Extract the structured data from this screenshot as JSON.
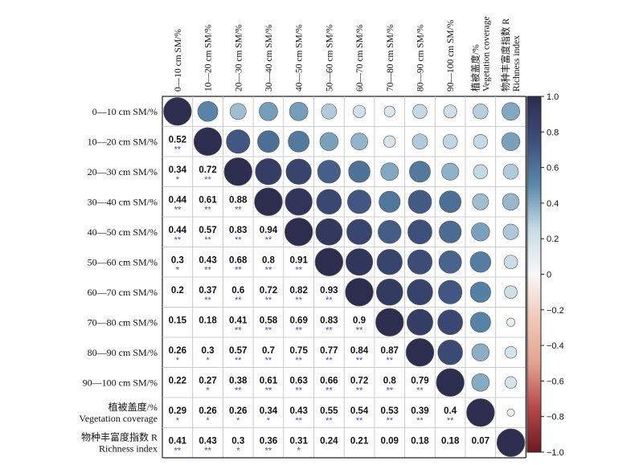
{
  "chart_data": {
    "type": "heatmap",
    "variables": [
      {
        "row_label": [
          "0—10 cm SM/%"
        ],
        "col_label": [
          "0—10 cm SM/%"
        ]
      },
      {
        "row_label": [
          "10—20 cm SM/%"
        ],
        "col_label": [
          "10—20 cm SM/%"
        ]
      },
      {
        "row_label": [
          "20—30 cm SM/%"
        ],
        "col_label": [
          "20—30 cm SM/%"
        ]
      },
      {
        "row_label": [
          "30—40 cm SM/%"
        ],
        "col_label": [
          "30—40 cm SM/%"
        ]
      },
      {
        "row_label": [
          "40—50 cm SM/%"
        ],
        "col_label": [
          "40—50 cm SM/%"
        ]
      },
      {
        "row_label": [
          "50—60 cm SM/%"
        ],
        "col_label": [
          "50—60 cm SM/%"
        ]
      },
      {
        "row_label": [
          "60—70 cm SM/%"
        ],
        "col_label": [
          "60—70 cm SM/%"
        ]
      },
      {
        "row_label": [
          "70—80 cm SM/%"
        ],
        "col_label": [
          "70—80 cm SM/%"
        ]
      },
      {
        "row_label": [
          "80—90 cm SM/%"
        ],
        "col_label": [
          "80—90 cm SM/%"
        ]
      },
      {
        "row_label": [
          "90—100 cm SM/%"
        ],
        "col_label": [
          "90—100 cm SM/%"
        ]
      },
      {
        "row_label": [
          "植被盖度/%",
          "Vegetation coverage"
        ],
        "col_label": [
          "植被盖度/%",
          "Vegetation coverage"
        ]
      },
      {
        "row_label": [
          "物种丰富度指数 R",
          "Richness index"
        ],
        "col_label": [
          "物种丰富度指数 R",
          "Richness index"
        ]
      }
    ],
    "correlation_matrix": [
      [
        1,
        0.52,
        0.34,
        0.44,
        0.44,
        0.3,
        0.2,
        0.15,
        0.26,
        0.22,
        0.29,
        0.41
      ],
      [
        0.52,
        1,
        0.72,
        0.61,
        0.57,
        0.43,
        0.37,
        0.18,
        0.3,
        0.27,
        0.26,
        0.43
      ],
      [
        0.34,
        0.72,
        1,
        0.88,
        0.83,
        0.68,
        0.6,
        0.41,
        0.57,
        0.38,
        0.26,
        0.3
      ],
      [
        0.44,
        0.61,
        0.88,
        1,
        0.94,
        0.8,
        0.72,
        0.58,
        0.7,
        0.61,
        0.34,
        0.36
      ],
      [
        0.44,
        0.57,
        0.83,
        0.94,
        1,
        0.91,
        0.82,
        0.69,
        0.75,
        0.63,
        0.43,
        0.31
      ],
      [
        0.3,
        0.43,
        0.68,
        0.8,
        0.91,
        1,
        0.93,
        0.83,
        0.77,
        0.66,
        0.55,
        0.24
      ],
      [
        0.2,
        0.37,
        0.6,
        0.72,
        0.82,
        0.93,
        1,
        0.9,
        0.84,
        0.72,
        0.54,
        0.21
      ],
      [
        0.15,
        0.18,
        0.41,
        0.58,
        0.69,
        0.83,
        0.9,
        1,
        0.87,
        0.8,
        0.53,
        0.09
      ],
      [
        0.26,
        0.3,
        0.57,
        0.7,
        0.75,
        0.77,
        0.84,
        0.87,
        1,
        0.79,
        0.39,
        0.18
      ],
      [
        0.22,
        0.27,
        0.38,
        0.61,
        0.63,
        0.66,
        0.72,
        0.8,
        0.79,
        1,
        0.4,
        0.18
      ],
      [
        0.29,
        0.26,
        0.26,
        0.34,
        0.43,
        0.55,
        0.54,
        0.53,
        0.39,
        0.4,
        1,
        0.07
      ],
      [
        0.41,
        0.43,
        0.3,
        0.36,
        0.31,
        0.24,
        0.21,
        0.09,
        0.18,
        0.18,
        0.07,
        1
      ]
    ],
    "lower_triangle_values": [
      [],
      [
        "0.52"
      ],
      [
        "0.34",
        "0.72"
      ],
      [
        "0.44",
        "0.61",
        "0.88"
      ],
      [
        "0.44",
        "0.57",
        "0.83",
        "0.94"
      ],
      [
        "0.3",
        "0.43",
        "0.68",
        "0.8",
        "0.91"
      ],
      [
        "0.2",
        "0.37",
        "0.6",
        "0.72",
        "0.82",
        "0.93"
      ],
      [
        "0.15",
        "0.18",
        "0.41",
        "0.58",
        "0.69",
        "0.83",
        "0.9"
      ],
      [
        "0.26",
        "0.3",
        "0.57",
        "0.7",
        "0.75",
        "0.77",
        "0.84",
        "0.87"
      ],
      [
        "0.22",
        "0.27",
        "0.38",
        "0.61",
        "0.63",
        "0.66",
        "0.72",
        "0.8",
        "0.79"
      ],
      [
        "0.29",
        "0.26",
        "0.26",
        "0.34",
        "0.43",
        "0.55",
        "0.54",
        "0.53",
        "0.39",
        "0.4"
      ],
      [
        "0.41",
        "0.43",
        "0.3",
        "0.36",
        "0.31",
        "0.24",
        "0.21",
        "0.09",
        "0.18",
        "0.18",
        "0.07"
      ]
    ],
    "significance": [
      [],
      [
        "**"
      ],
      [
        "*",
        "**"
      ],
      [
        "**",
        "**",
        "**"
      ],
      [
        "**",
        "**",
        "**",
        "**"
      ],
      [
        "*",
        "**",
        "**",
        "**",
        "**"
      ],
      [
        "",
        "**",
        "**",
        "**",
        "**",
        "**"
      ],
      [
        "",
        "",
        "**",
        "**",
        "**",
        "**",
        "**"
      ],
      [
        "*",
        "*",
        "**",
        "**",
        "**",
        "**",
        "**",
        "**"
      ],
      [
        "",
        "*",
        "**",
        "**",
        "**",
        "**",
        "**",
        "**",
        "**"
      ],
      [
        "*",
        "*",
        "*",
        "*",
        "**",
        "**",
        "**",
        "**",
        "**",
        "**"
      ],
      [
        "**",
        "**",
        "*",
        "**",
        "*",
        "",
        "",
        "",
        "",
        "",
        ""
      ]
    ],
    "upper_triangle": "circles sized and colored by coefficient",
    "colorbar": {
      "range": [
        -1.0,
        1.0
      ],
      "ticks": [
        "1.0",
        "0.8",
        "0.6",
        "0.4",
        "0.2",
        "0",
        "−0.2",
        "−0.4",
        "−0.6",
        "−0.8",
        "−1.0"
      ],
      "colors": {
        "pos_high": "#2d2d4f",
        "pos_mid": "#5b89ab",
        "neutral": "#f7f7f7",
        "neg_mid": "#e3a28e",
        "neg_high": "#6e1a20"
      }
    }
  }
}
